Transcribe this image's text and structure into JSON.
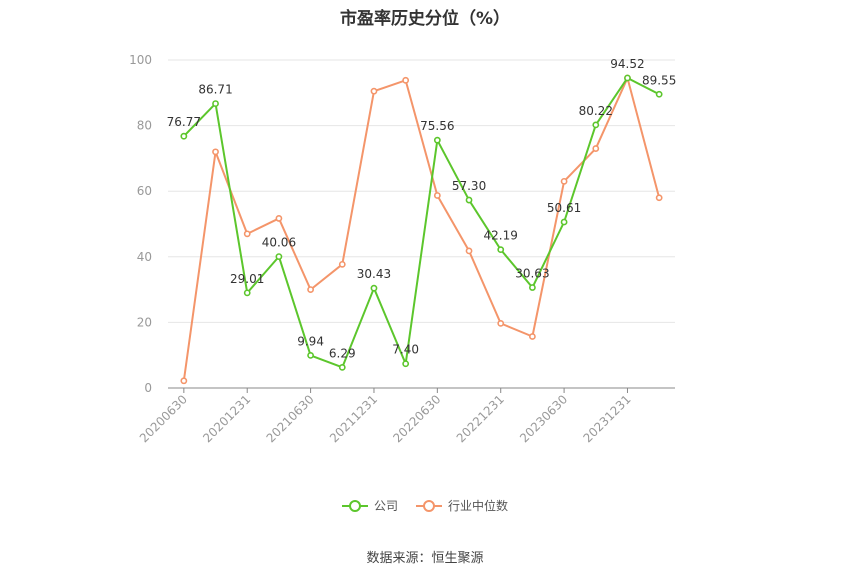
{
  "title": "市盈率历史分位（%）",
  "source": "数据来源：恒生聚源",
  "chart_data": {
    "type": "line",
    "x": [
      "20200630",
      "20201231_a",
      "20201231",
      "20210630_a",
      "20210630",
      "20211231_a",
      "20211231",
      "20220630_a",
      "20220630",
      "20221231_a",
      "20221231",
      "20230630_a",
      "20230630",
      "20231231_a",
      "20231231",
      "20240630_a"
    ],
    "x_tick_labels": [
      "20200630",
      "20201231",
      "20210630",
      "20211231",
      "20220630",
      "20221231",
      "20230630",
      "20231231"
    ],
    "ylim": [
      0,
      100
    ],
    "y_ticks": [
      0,
      20,
      40,
      60,
      80,
      100
    ],
    "grid": true,
    "legend_position": "bottom",
    "series": [
      {
        "name": "公司",
        "color": "#5cc62c",
        "values": [
          76.77,
          86.71,
          29.01,
          40.06,
          9.94,
          6.29,
          30.43,
          7.4,
          75.56,
          57.3,
          42.19,
          30.63,
          50.61,
          80.22,
          94.52,
          89.55
        ],
        "labels": [
          "76.77",
          "86.71",
          "29.01",
          "40.06",
          "9.94",
          "6.29",
          "30.43",
          "7.40",
          "75.56",
          "57.30",
          "42.19",
          "30.63",
          "50.61",
          "80.22",
          "94.52",
          "89.55"
        ]
      },
      {
        "name": "行业中位数",
        "color": "#f4956a",
        "values": [
          2.2,
          72.0,
          47.0,
          51.7,
          30.0,
          37.7,
          90.5,
          93.8,
          58.7,
          41.8,
          19.7,
          15.7,
          63.0,
          73.0,
          94.5,
          58.0
        ]
      }
    ]
  }
}
